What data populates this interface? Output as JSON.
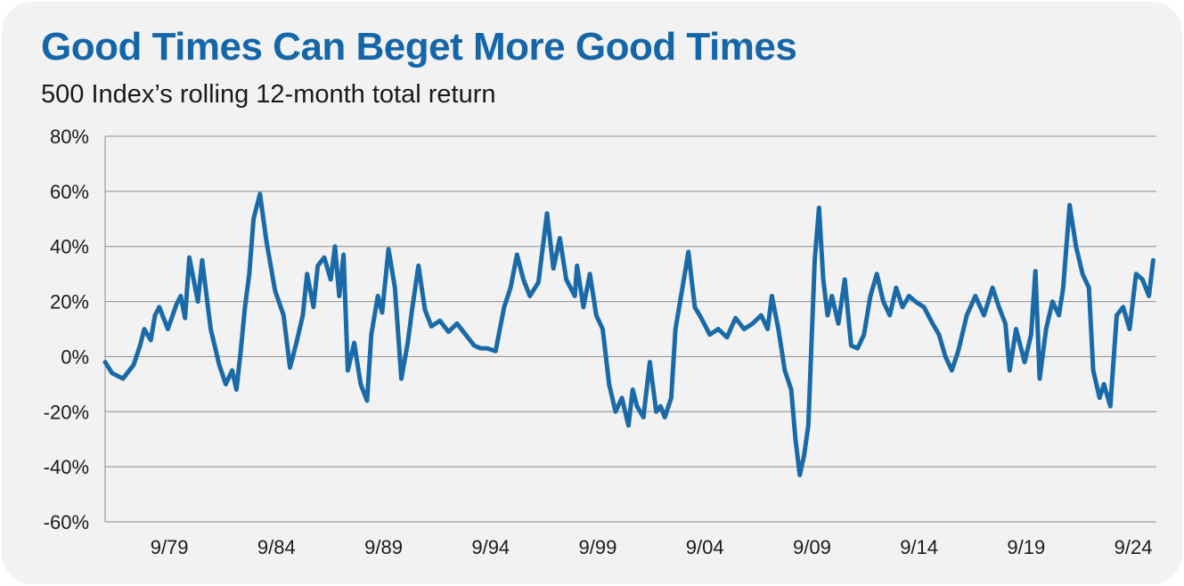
{
  "title": "Good Times Can Beget More Good Times",
  "subtitle": "500 Index’s rolling 12-month total return",
  "colors": {
    "title": "#1566a8",
    "line": "#1a6aa8",
    "grid": "#8c8c8c",
    "background": "#f2f2f2"
  },
  "chart_data": {
    "type": "line",
    "title": "Good Times Can Beget More Good Times",
    "subtitle": "500 Index’s rolling 12-month total return",
    "xlabel": "",
    "ylabel": "",
    "grid": true,
    "ylim": [
      -60,
      80
    ],
    "xlim": [
      1976.67,
      2025.75
    ],
    "y_ticks": [
      80,
      60,
      40,
      20,
      0,
      -20,
      -40,
      -60
    ],
    "y_tick_labels": [
      "80%",
      "60%",
      "40%",
      "20%",
      "0%",
      "-20%",
      "-40%",
      "-60%"
    ],
    "x_ticks": [
      1979.67,
      1984.67,
      1989.67,
      1994.67,
      1999.67,
      2004.67,
      2009.67,
      2014.67,
      2019.67,
      2024.67
    ],
    "x_tick_labels": [
      "9/79",
      "9/84",
      "9/89",
      "9/94",
      "9/99",
      "9/04",
      "9/09",
      "9/14",
      "9/19",
      "9/24"
    ],
    "series": [
      {
        "name": "500 Index rolling 12-month total return",
        "x": [
          1976.67,
          1977.0,
          1977.5,
          1978.0,
          1978.3,
          1978.5,
          1978.8,
          1979.0,
          1979.2,
          1979.6,
          1980.0,
          1980.2,
          1980.4,
          1980.6,
          1981.0,
          1981.2,
          1981.6,
          1982.0,
          1982.3,
          1982.6,
          1982.8,
          1983.0,
          1983.2,
          1983.4,
          1983.6,
          1983.9,
          1984.2,
          1984.6,
          1985.0,
          1985.3,
          1985.6,
          1985.9,
          1986.1,
          1986.4,
          1986.6,
          1986.9,
          1987.2,
          1987.4,
          1987.6,
          1987.8,
          1988.0,
          1988.3,
          1988.6,
          1988.9,
          1989.1,
          1989.4,
          1989.6,
          1989.9,
          1990.2,
          1990.5,
          1990.8,
          1991.0,
          1991.3,
          1991.6,
          1991.9,
          1992.3,
          1992.7,
          1993.1,
          1993.5,
          1993.9,
          1994.2,
          1994.5,
          1994.9,
          1995.3,
          1995.6,
          1995.9,
          1996.2,
          1996.5,
          1996.9,
          1997.3,
          1997.6,
          1997.9,
          1998.2,
          1998.6,
          1998.7,
          1999.0,
          1999.3,
          1999.6,
          1999.9,
          2000.2,
          2000.5,
          2000.8,
          2001.1,
          2001.3,
          2001.5,
          2001.8,
          2002.1,
          2002.4,
          2002.6,
          2002.8,
          2003.1,
          2003.3,
          2003.6,
          2003.9,
          2004.2,
          2004.5,
          2004.9,
          2005.3,
          2005.7,
          2006.1,
          2006.5,
          2006.9,
          2007.3,
          2007.6,
          2007.8,
          2008.1,
          2008.4,
          2008.7,
          2008.9,
          2009.1,
          2009.3,
          2009.5,
          2009.8,
          2010.0,
          2010.2,
          2010.4,
          2010.6,
          2010.9,
          2011.2,
          2011.5,
          2011.8,
          2012.1,
          2012.4,
          2012.7,
          2013.0,
          2013.3,
          2013.6,
          2013.9,
          2014.2,
          2014.5,
          2014.9,
          2015.3,
          2015.6,
          2015.9,
          2016.2,
          2016.5,
          2016.9,
          2017.3,
          2017.7,
          2018.1,
          2018.4,
          2018.7,
          2018.9,
          2019.2,
          2019.6,
          2019.9,
          2020.1,
          2020.3,
          2020.6,
          2020.9,
          2021.2,
          2021.4,
          2021.7,
          2022.0,
          2022.3,
          2022.6,
          2022.8,
          2023.1,
          2023.3,
          2023.6,
          2023.9,
          2024.2,
          2024.5,
          2024.8,
          2025.1,
          2025.4,
          2025.6
        ],
        "values": [
          -2,
          -6,
          -8,
          -3,
          4,
          10,
          6,
          15,
          18,
          10,
          19,
          22,
          14,
          36,
          20,
          35,
          10,
          -3,
          -10,
          -5,
          -12,
          2,
          18,
          30,
          50,
          59,
          42,
          24,
          15,
          -4,
          5,
          15,
          30,
          18,
          33,
          36,
          28,
          40,
          22,
          37,
          -5,
          5,
          -10,
          -16,
          8,
          22,
          16,
          39,
          25,
          -8,
          5,
          17,
          33,
          17,
          11,
          13,
          9,
          12,
          8,
          4,
          3,
          3,
          2,
          18,
          25,
          37,
          28,
          22,
          27,
          52,
          32,
          43,
          28,
          22,
          33,
          18,
          30,
          15,
          10,
          -10,
          -20,
          -15,
          -25,
          -12,
          -18,
          -22,
          -2,
          -20,
          -18,
          -22,
          -15,
          10,
          24,
          38,
          18,
          14,
          8,
          10,
          7,
          14,
          10,
          12,
          15,
          10,
          22,
          10,
          -5,
          -12,
          -30,
          -43,
          -36,
          -25,
          35,
          54,
          28,
          15,
          22,
          12,
          28,
          4,
          3,
          8,
          22,
          30,
          20,
          15,
          25,
          18,
          22,
          20,
          18,
          12,
          8,
          0,
          -5,
          2,
          15,
          22,
          15,
          25,
          18,
          12,
          -5,
          10,
          -2,
          8,
          31,
          -8,
          10,
          20,
          15,
          25,
          55,
          40,
          30,
          25,
          -5,
          -15,
          -10,
          -18,
          15,
          18,
          10,
          30,
          28,
          22,
          35
        ]
      }
    ]
  }
}
